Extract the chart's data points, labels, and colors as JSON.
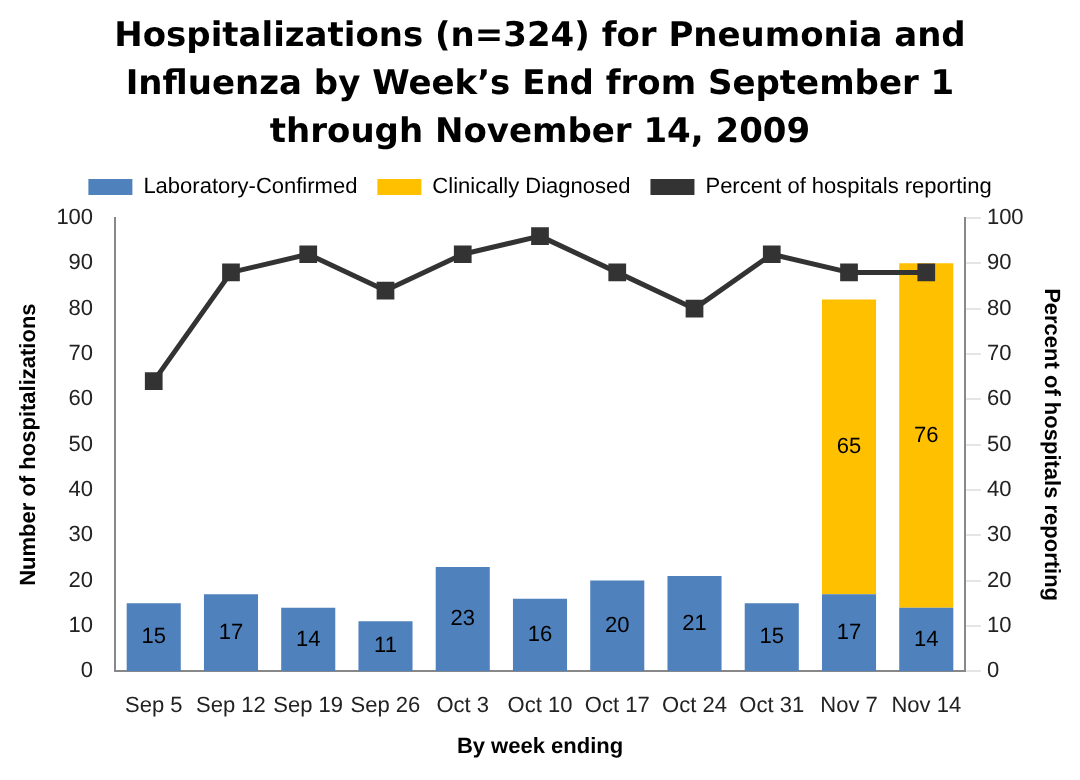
{
  "chart_data": {
    "type": "bar",
    "stacked": true,
    "title": "Hospitalizations (n=324) for Pneumonia and Influenza by Week’s End from September 1 through November 14, 2009",
    "xlabel": "By week ending",
    "ylabel": "Number of hospitalizations",
    "y2label": "Percent of hospitals reporting",
    "categories": [
      "Sep 5",
      "Sep 12",
      "Sep 19",
      "Sep 26",
      "Oct 3",
      "Oct 10",
      "Oct 17",
      "Oct 24",
      "Oct 31",
      "Nov 7",
      "Nov 14"
    ],
    "series": [
      {
        "name": "Laboratory-Confirmed",
        "color": "#4f81bd",
        "values": [
          15,
          17,
          14,
          11,
          23,
          16,
          20,
          21,
          15,
          17,
          14
        ],
        "value_labels": [
          "15",
          "17",
          "14",
          "11",
          "23",
          "16",
          "20",
          "21",
          "15",
          "17",
          "14"
        ]
      },
      {
        "name": "Clinically Diagnosed",
        "color": "#ffc000",
        "values": [
          0,
          0,
          0,
          0,
          0,
          0,
          0,
          0,
          0,
          65,
          76
        ],
        "value_labels": [
          null,
          null,
          null,
          null,
          null,
          null,
          null,
          null,
          null,
          "65",
          "76"
        ]
      },
      {
        "name": "Percent of hospitals reporting",
        "type": "line",
        "axis": "y2",
        "color": "#333333",
        "marker": "square",
        "values": [
          64,
          88,
          92,
          84,
          92,
          96,
          88,
          80,
          92,
          88,
          88
        ]
      }
    ],
    "ylim": [
      0,
      100
    ],
    "yticks": [
      0,
      10,
      20,
      30,
      40,
      50,
      60,
      70,
      80,
      90,
      100
    ],
    "y2lim": [
      0,
      100
    ],
    "y2ticks": [
      0,
      10,
      20,
      30,
      40,
      50,
      60,
      70,
      80,
      90,
      100
    ],
    "legend": "top",
    "grid": false
  }
}
